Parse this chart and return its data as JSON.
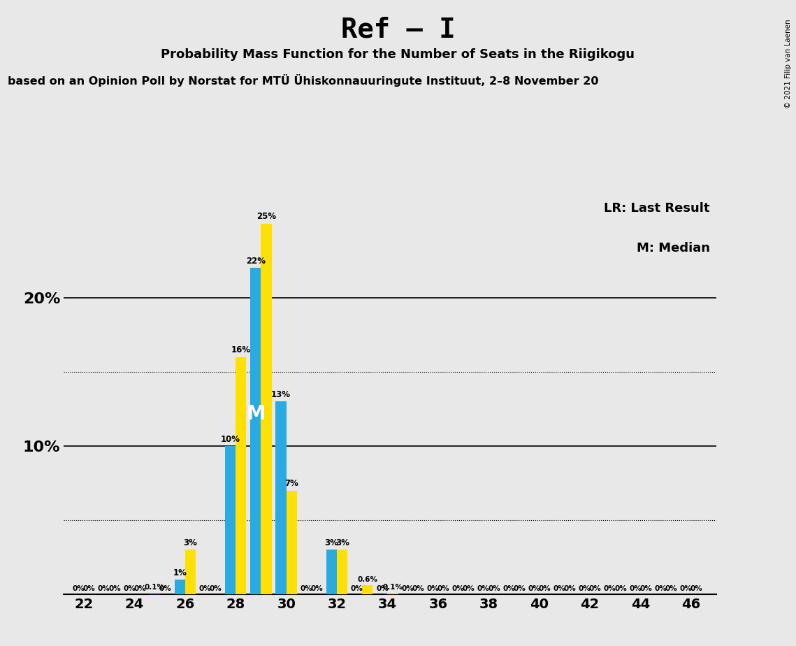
{
  "title": "Ref – I",
  "subtitle": "Probability Mass Function for the Number of Seats in the Riigikogu",
  "source_line": "based on an Opinion Poll by Norstat for MTÜ Ühiskonnauuringute Instituut, 2–8 November 20",
  "copyright": "© 2021 Filip van Laenen",
  "seats": [
    22,
    23,
    24,
    25,
    26,
    27,
    28,
    29,
    30,
    31,
    32,
    33,
    34,
    35,
    36,
    37,
    38,
    39,
    40,
    41,
    42,
    43,
    44,
    45,
    46
  ],
  "blue_values": [
    0.0,
    0.0,
    0.0,
    0.1,
    1.0,
    0.0,
    10.0,
    22.0,
    13.0,
    0.0,
    3.0,
    0.0,
    0.0,
    0.0,
    0.0,
    0.0,
    0.0,
    0.0,
    0.0,
    0.0,
    0.0,
    0.0,
    0.0,
    0.0,
    0.0
  ],
  "yellow_values": [
    0.0,
    0.0,
    0.0,
    0.0,
    3.0,
    0.0,
    16.0,
    25.0,
    7.0,
    0.0,
    3.0,
    0.6,
    0.1,
    0.0,
    0.0,
    0.0,
    0.0,
    0.0,
    0.0,
    0.0,
    0.0,
    0.0,
    0.0,
    0.0,
    0.0
  ],
  "blue_color": "#29ABE2",
  "yellow_color": "#FFE000",
  "background_color": "#E8E8E8",
  "median_seat": 29,
  "lr_seat": 34,
  "ylim": [
    0,
    27
  ],
  "bar_width": 0.42,
  "legend_lr": "LR: Last Result",
  "legend_m": "M: Median"
}
